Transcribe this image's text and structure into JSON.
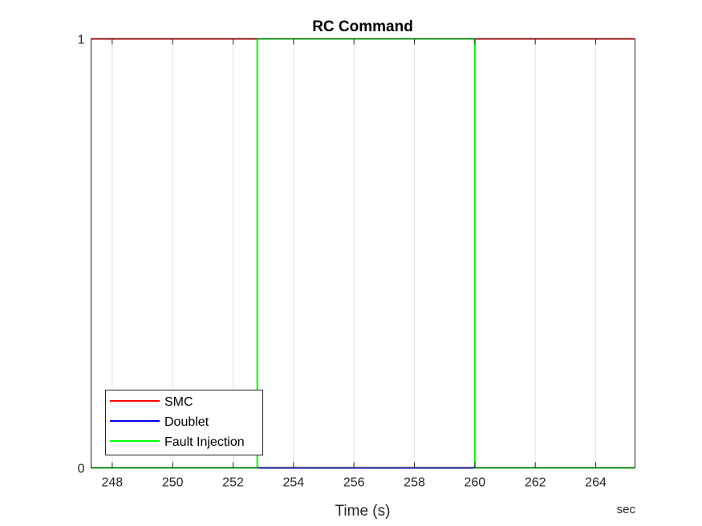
{
  "chart_data": {
    "type": "line",
    "title": "RC Command",
    "xlabel": "Time (s)",
    "x_unit_label": "sec",
    "ylabel": "",
    "xlim": [
      247.3,
      265.3
    ],
    "ylim": [
      0,
      1
    ],
    "xticks": [
      248,
      250,
      252,
      254,
      256,
      258,
      260,
      262,
      264
    ],
    "yticks": [
      0,
      1
    ],
    "xtick_labels": [
      "248",
      "250",
      "252",
      "254",
      "256",
      "258",
      "260",
      "262",
      "264"
    ],
    "ytick_labels": [
      "0",
      "1"
    ],
    "grid_x": true,
    "grid_y": false,
    "legend_position": "bottom-left",
    "series": [
      {
        "name": "SMC",
        "color": "#ff0000",
        "step": true,
        "x": [
          247.3,
          265.3
        ],
        "y": [
          1,
          1
        ]
      },
      {
        "name": "Doublet",
        "color": "#0000ff",
        "step": true,
        "x": [
          247.3,
          265.3
        ],
        "y": [
          0,
          0
        ]
      },
      {
        "name": "Fault Injection",
        "color": "#00ff00",
        "step": true,
        "x": [
          247.3,
          252.8,
          252.8,
          260.0,
          260.0,
          265.3
        ],
        "y": [
          0,
          0,
          1,
          1,
          0,
          0
        ]
      }
    ]
  }
}
